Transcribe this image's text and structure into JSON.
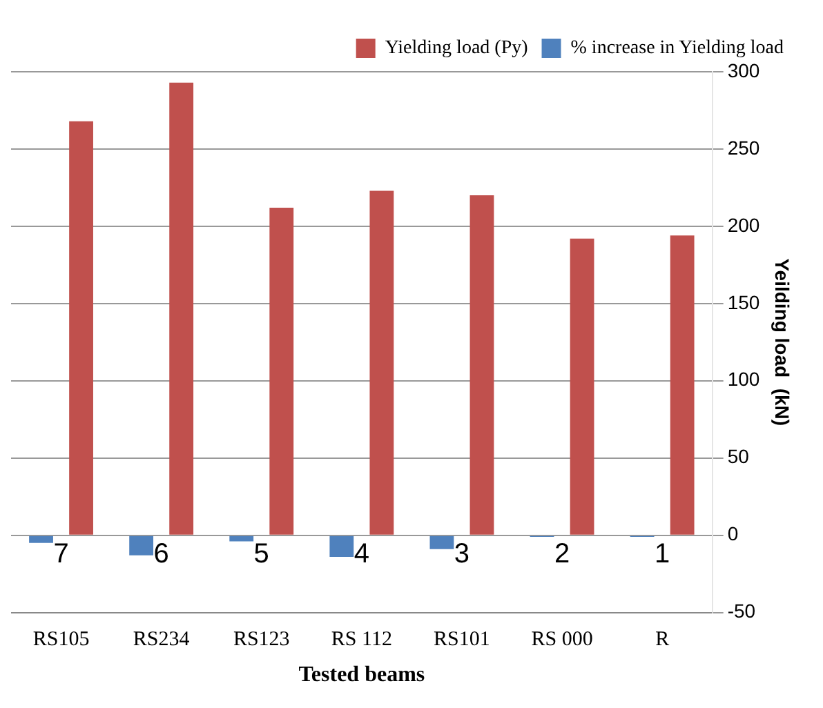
{
  "chart_data": {
    "type": "bar",
    "xlabel": "Tested beams",
    "ylabel": "Yeilding load  (kN)",
    "categories": [
      "RS105",
      "RS234",
      "RS123",
      "RS 112",
      "RS101",
      "RS 000",
      "R"
    ],
    "series": [
      {
        "name": "Yielding load (Py)",
        "color": "#c0504d",
        "values": [
          268,
          293,
          212,
          223,
          220,
          192,
          194
        ]
      },
      {
        "name": "% increase in Yielding load",
        "color": "#4f81bd",
        "values": [
          -5,
          -13,
          -4,
          -14,
          -9,
          -1,
          -1
        ]
      }
    ],
    "annotations": [
      "7",
      "6",
      "5",
      "4",
      "3",
      "2",
      "1"
    ],
    "ylim": [
      -50,
      300
    ],
    "yticks": [
      -50,
      0,
      50,
      100,
      150,
      200,
      250,
      300
    ],
    "grid": "y",
    "legend": "top right"
  }
}
